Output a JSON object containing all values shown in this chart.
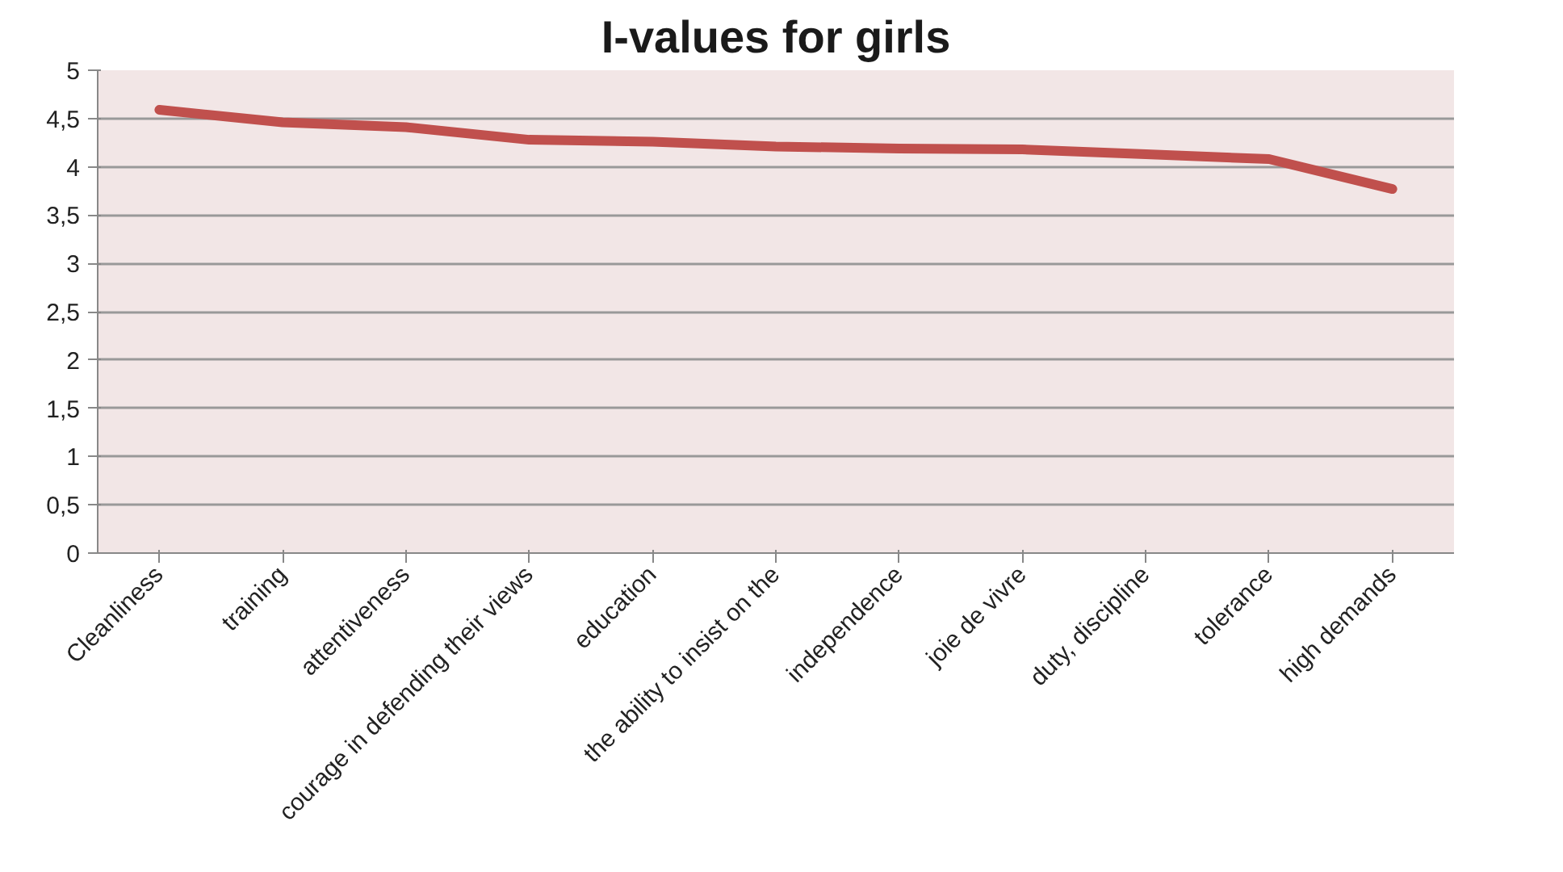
{
  "chart_data": {
    "type": "line",
    "title": "I-values for girls",
    "categories": [
      "Cleanliness",
      "training",
      "attentiveness",
      "courage in defending their views",
      "education",
      "the ability to insist on the",
      "independence",
      "joie de vivre",
      "duty, discipline",
      "tolerance",
      "high demands"
    ],
    "series": [
      {
        "color": "#c0504d",
        "values": [
          4.59,
          4.46,
          4.41,
          4.28,
          4.26,
          4.21,
          4.19,
          4.18,
          4.13,
          4.08,
          3.77
        ]
      }
    ],
    "ylim": [
      0,
      5
    ],
    "yticks": [
      0,
      {
        "value": 0.5,
        "label": "0,5"
      },
      1,
      {
        "value": 1.5,
        "label": "1,5"
      },
      2,
      {
        "value": 2.5,
        "label": "2,5"
      },
      3,
      {
        "value": 3.5,
        "label": "3,5"
      },
      4,
      {
        "value": 4.5,
        "label": "4,5"
      },
      5
    ],
    "grid": "y",
    "marker": "none",
    "line_style": "solid"
  }
}
